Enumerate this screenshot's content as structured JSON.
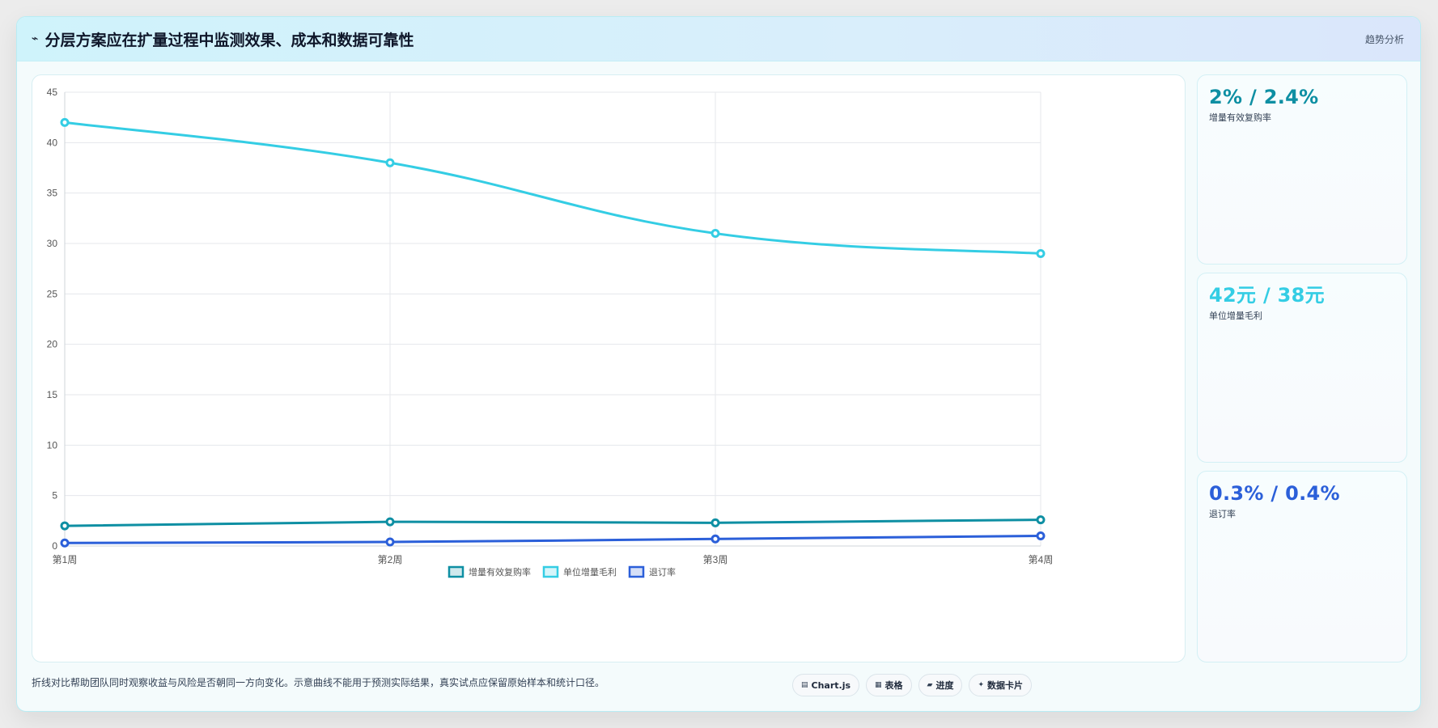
{
  "header": {
    "icon": "pulse-icon",
    "title": "分层方案应在扩量过程中监测效果、成本和数据可靠性",
    "right_label": "趋势分析"
  },
  "colors": {
    "series1": "#0e8fa3",
    "series2": "#34cde4",
    "series3": "#2b5fd9",
    "grid": "#e5e7eb"
  },
  "chart_data": {
    "type": "line",
    "title": "",
    "xlabel": "",
    "ylabel": "",
    "categories": [
      "第1周",
      "第2周",
      "第3周",
      "第4周"
    ],
    "ylim": [
      0,
      45
    ],
    "yticks": [
      0,
      5,
      10,
      15,
      20,
      25,
      30,
      35,
      40,
      45
    ],
    "grid": true,
    "legend_position": "bottom",
    "series": [
      {
        "name": "增量有效复购率",
        "color": "#0e8fa3",
        "values": [
          2.0,
          2.4,
          2.3,
          2.6
        ]
      },
      {
        "name": "单位增量毛利",
        "color": "#34cde4",
        "values": [
          42,
          38,
          31,
          29
        ]
      },
      {
        "name": "退订率",
        "color": "#2b5fd9",
        "values": [
          0.3,
          0.4,
          0.7,
          1.0
        ]
      }
    ]
  },
  "stats": [
    {
      "value": "2% / 2.4%",
      "label": "增量有效复购率",
      "color": "#0e8fa3"
    },
    {
      "value": "42元 / 38元",
      "label": "单位增量毛利",
      "color": "#34cde4"
    },
    {
      "value": "0.3% / 0.4%",
      "label": "退订率",
      "color": "#2b5fd9"
    }
  ],
  "footer": {
    "note": "折线对比帮助团队同时观察收益与风险是否朝同一方向变化。示意曲线不能用于预测实际结果，真实试点应保留原始样本和统计口径。",
    "chips": [
      {
        "icon": "chart-icon",
        "glyph": "▤",
        "label": "Chart.js"
      },
      {
        "icon": "table-icon",
        "glyph": "▦",
        "label": "表格"
      },
      {
        "icon": "progress-icon",
        "glyph": "▰",
        "label": "进度"
      },
      {
        "icon": "card-icon",
        "glyph": "✦",
        "label": "数据卡片"
      }
    ]
  }
}
